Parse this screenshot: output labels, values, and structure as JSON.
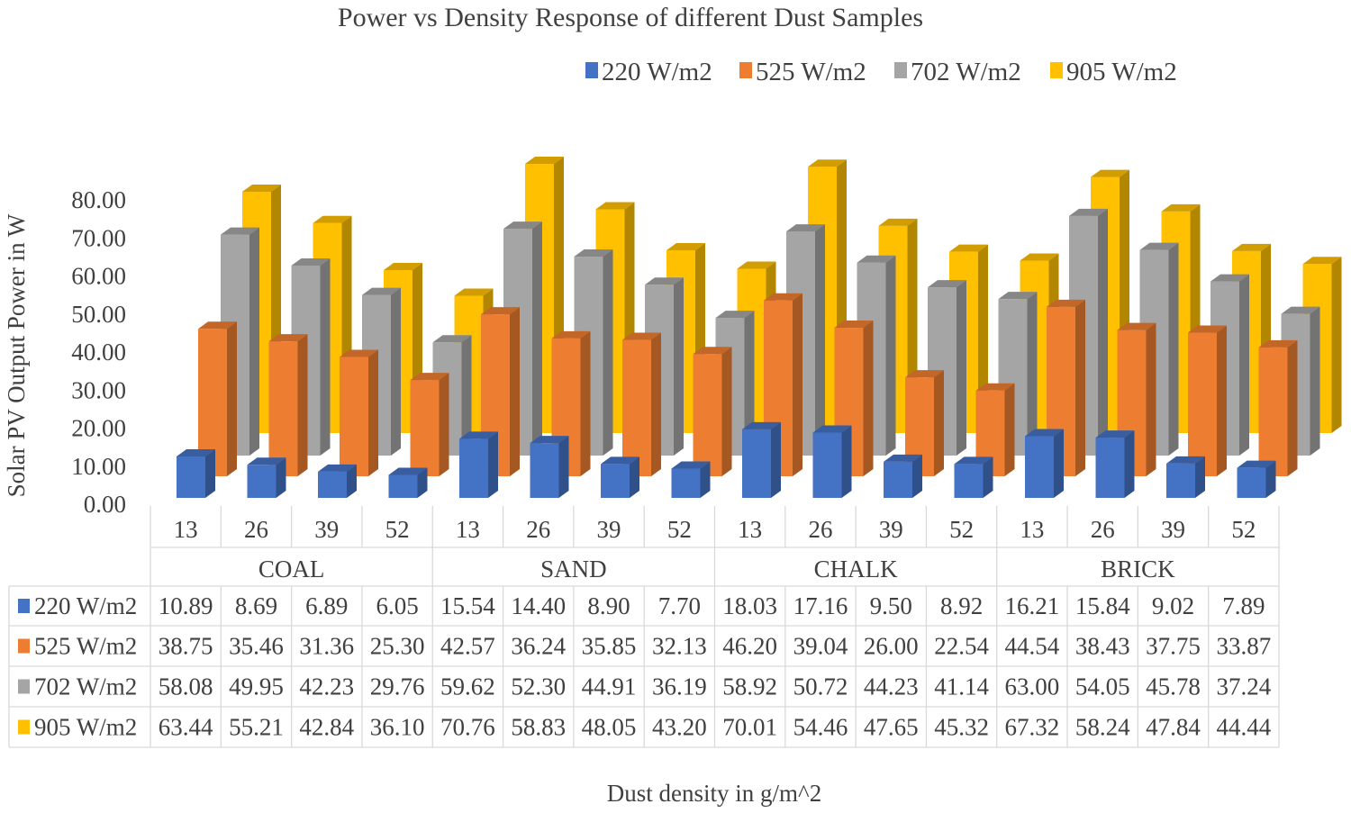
{
  "chart_data": {
    "type": "bar",
    "subtype": "3d-clustered-column-with-data-table",
    "title": "Power vs Density Response of different Dust Samples",
    "ylabel": "Solar PV Output Power in W",
    "xlabel": "Dust density in g/m^2",
    "ylim": [
      0,
      80
    ],
    "yticks": [
      "0.00",
      "10.00",
      "20.00",
      "30.00",
      "40.00",
      "50.00",
      "60.00",
      "70.00",
      "80.00"
    ],
    "legend_position": "top",
    "groups": [
      "COAL",
      "SAND",
      "CHALK",
      "BRICK"
    ],
    "densities": [
      "13",
      "26",
      "39",
      "52"
    ],
    "series": [
      {
        "name": "220 W/m2",
        "color": "#4472c4",
        "values": [
          10.89,
          8.69,
          6.89,
          6.05,
          15.54,
          14.4,
          8.9,
          7.7,
          18.03,
          17.16,
          9.5,
          8.92,
          16.21,
          15.84,
          9.02,
          7.89
        ],
        "labels": [
          "10.89",
          "8.69",
          "6.89",
          "6.05",
          "15.54",
          "14.40",
          "8.90",
          "7.70",
          "18.03",
          "17.16",
          "9.50",
          "8.92",
          "16.21",
          "15.84",
          "9.02",
          "7.89"
        ]
      },
      {
        "name": "525 W/m2",
        "color": "#ed7d31",
        "values": [
          38.75,
          35.46,
          31.36,
          25.3,
          42.57,
          36.24,
          35.85,
          32.13,
          46.2,
          39.04,
          26.0,
          22.54,
          44.54,
          38.43,
          37.75,
          33.87
        ],
        "labels": [
          "38.75",
          "35.46",
          "31.36",
          "25.30",
          "42.57",
          "36.24",
          "35.85",
          "32.13",
          "46.20",
          "39.04",
          "26.00",
          "22.54",
          "44.54",
          "38.43",
          "37.75",
          "33.87"
        ]
      },
      {
        "name": "702 W/m2",
        "color": "#a5a5a5",
        "values": [
          58.08,
          49.95,
          42.23,
          29.76,
          59.62,
          52.3,
          44.91,
          36.19,
          58.92,
          50.72,
          44.23,
          41.14,
          63.0,
          54.05,
          45.78,
          37.24
        ],
        "labels": [
          "58.08",
          "49.95",
          "42.23",
          "29.76",
          "59.62",
          "52.30",
          "44.91",
          "36.19",
          "58.92",
          "50.72",
          "44.23",
          "41.14",
          "63.00",
          "54.05",
          "45.78",
          "37.24"
        ]
      },
      {
        "name": "905 W/m2",
        "color": "#ffc000",
        "values": [
          63.44,
          55.21,
          42.84,
          36.1,
          70.76,
          58.83,
          48.05,
          43.2,
          70.01,
          54.46,
          47.65,
          45.32,
          67.32,
          58.24,
          47.84,
          44.44
        ],
        "labels": [
          "63.44",
          "55.21",
          "42.84",
          "36.10",
          "70.76",
          "58.83",
          "48.05",
          "43.20",
          "70.01",
          "54.46",
          "47.65",
          "45.32",
          "67.32",
          "58.24",
          "47.84",
          "44.44"
        ]
      }
    ]
  }
}
